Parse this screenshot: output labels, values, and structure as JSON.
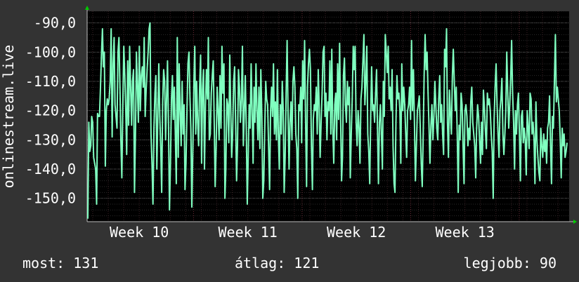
{
  "chart_data": {
    "type": "line",
    "ylabel": "onlinestream.live",
    "ylim": [
      -158,
      -86
    ],
    "yticks": [
      -90,
      -100,
      -110,
      -120,
      -130,
      -140,
      -150
    ],
    "ytick_labels": [
      "-90,0",
      "-100,0",
      "-110,0",
      "-120,0",
      "-130,0",
      "-140,0",
      "-150,0"
    ],
    "xticks": [
      {
        "label": "Week 10",
        "week": 10
      },
      {
        "label": "Week 11",
        "week": 11
      },
      {
        "label": "Week 12",
        "week": 12
      },
      {
        "label": "Week 13",
        "week": 13
      }
    ],
    "x_week_range": [
      9.52,
      13.96
    ],
    "grid": true,
    "series": [
      {
        "color": "#80ffc0",
        "values": [
          -157,
          -124,
          -134,
          -132,
          -122,
          -124,
          -136,
          -138,
          -140,
          -152,
          -121,
          -122,
          -122,
          -112,
          -101,
          -92,
          -105,
          -100,
          -139,
          -120,
          -116,
          -118,
          -116,
          -110,
          -92,
          -129,
          -104,
          -95,
          -118,
          -122,
          -126,
          -100,
          -95,
          -112,
          -130,
          -143,
          -118,
          -98,
          -108,
          -120,
          -135,
          -103,
          -125,
          -98,
          -112,
          -125,
          -110,
          -106,
          -148,
          -128,
          -100,
          -112,
          -124,
          -98,
          -120,
          -108,
          -105,
          -112,
          -95,
          -122,
          -113,
          -106,
          -100,
          -92,
          -90,
          -128,
          -138,
          -152,
          -126,
          -114,
          -108,
          -140,
          -122,
          -104,
          -122,
          -133,
          -148,
          -117,
          -106,
          -110,
          -130,
          -115,
          -103,
          -125,
          -154,
          -138,
          -116,
          -108,
          -123,
          -112,
          -128,
          -145,
          -95,
          -136,
          -104,
          -120,
          -132,
          -110,
          -128,
          -118,
          -147,
          -138,
          -120,
          -104,
          -100,
          -115,
          -126,
          -153,
          -134,
          -112,
          -98,
          -128,
          -110,
          -124,
          -132,
          -112,
          -101,
          -138,
          -113,
          -106,
          -140,
          -118,
          -106,
          -116,
          -95,
          -130,
          -128,
          -114,
          -108,
          -103,
          -123,
          -146,
          -133,
          -112,
          -120,
          -130,
          -108,
          -126,
          -98,
          -114,
          -104,
          -150,
          -140,
          -116,
          -118,
          -131,
          -101,
          -120,
          -136,
          -128,
          -110,
          -105,
          -124,
          -144,
          -132,
          -106,
          -112,
          -124,
          -116,
          -98,
          -132,
          -120,
          -108,
          -126,
          -152,
          -135,
          -118,
          -126,
          -104,
          -120,
          -138,
          -112,
          -124,
          -104,
          -120,
          -130,
          -112,
          -133,
          -106,
          -121,
          -150,
          -144,
          -126,
          -110,
          -116,
          -118,
          -133,
          -147,
          -120,
          -112,
          -122,
          -104,
          -128,
          -117,
          -130,
          -106,
          -128,
          -140,
          -118,
          -128,
          -110,
          -120,
          -148,
          -136,
          -114,
          -96,
          -122,
          -140,
          -124,
          -117,
          -130,
          -110,
          -105,
          -112,
          -128,
          -133,
          -150,
          -118,
          -120,
          -112,
          -131,
          -103,
          -116,
          -96,
          -124,
          -146,
          -112,
          -104,
          -99,
          -106,
          -132,
          -147,
          -123,
          -118,
          -120,
          -112,
          -128,
          -106,
          -118,
          -136,
          -124,
          -114,
          -100,
          -98,
          -122,
          -114,
          -130,
          -117,
          -120,
          -103,
          -128,
          -99,
          -126,
          -138,
          -118,
          -114,
          -130,
          -104,
          -123,
          -97,
          -122,
          -144,
          -136,
          -108,
          -102,
          -118,
          -124,
          -110,
          -118,
          -112,
          -143,
          -128,
          -116,
          -98,
          -106,
          -98,
          -124,
          -132,
          -120,
          -126,
          -138,
          -116,
          -112,
          -103,
          -94,
          -118,
          -110,
          -98,
          -128,
          -134,
          -145,
          -121,
          -105,
          -120,
          -118,
          -124,
          -114,
          -106,
          -126,
          -145,
          -124,
          -118,
          -128,
          -140,
          -110,
          -122,
          -94,
          -100,
          -107,
          -98,
          -116,
          -112,
          -120,
          -106,
          -132,
          -145,
          -148,
          -124,
          -108,
          -116,
          -114,
          -120,
          -138,
          -104,
          -120,
          -112,
          -118,
          -128,
          -136,
          -120,
          -118,
          -112,
          -123,
          -96,
          -120,
          -106,
          -124,
          -144,
          -132,
          -120,
          -118,
          -115,
          -126,
          -138,
          -146,
          -128,
          -108,
          -94,
          -106,
          -100,
          -114,
          -126,
          -138,
          -125,
          -118,
          -130,
          -122,
          -110,
          -118,
          -126,
          -130,
          -116,
          -108,
          -124,
          -118,
          -128,
          -135,
          -99,
          -105,
          -92,
          -124,
          -136,
          -113,
          -121,
          -128,
          -108,
          -99,
          -110,
          -120,
          -112,
          -128,
          -148,
          -125,
          -130,
          -114,
          -118,
          -132,
          -145,
          -120,
          -118,
          -122,
          -132,
          -126,
          -130,
          -117,
          -112,
          -124,
          -128,
          -132,
          -143,
          -126,
          -118,
          -122,
          -130,
          -138,
          -124,
          -135,
          -113,
          -119,
          -127,
          -133,
          -114,
          -118,
          -116,
          -120,
          -128,
          -134,
          -150,
          -123,
          -112,
          -104,
          -118,
          -128,
          -136,
          -120,
          -116,
          -109,
          -128,
          -135,
          -128,
          -120,
          -100,
          -114,
          -126,
          -118,
          -109,
          -96,
          -114,
          -124,
          -140,
          -120,
          -128,
          -118,
          -114,
          -128,
          -144,
          -122,
          -120,
          -131,
          -126,
          -130,
          -142,
          -120,
          -126,
          -133,
          -114,
          -116,
          -128,
          -124,
          -130,
          -145,
          -117,
          -130,
          -136,
          -141,
          -144,
          -126,
          -132,
          -136,
          -128,
          -134,
          -130,
          -138,
          -126,
          -124,
          -115,
          -132,
          -145,
          -122,
          -126,
          -110,
          -94,
          -117,
          -112,
          -116,
          -120,
          -130,
          -143,
          -126,
          -132,
          -128,
          -136,
          -134,
          -131
        ]
      }
    ]
  },
  "footer": {
    "current": "most: 131",
    "average": "átlag: 121",
    "best": "legjobb: 90"
  }
}
